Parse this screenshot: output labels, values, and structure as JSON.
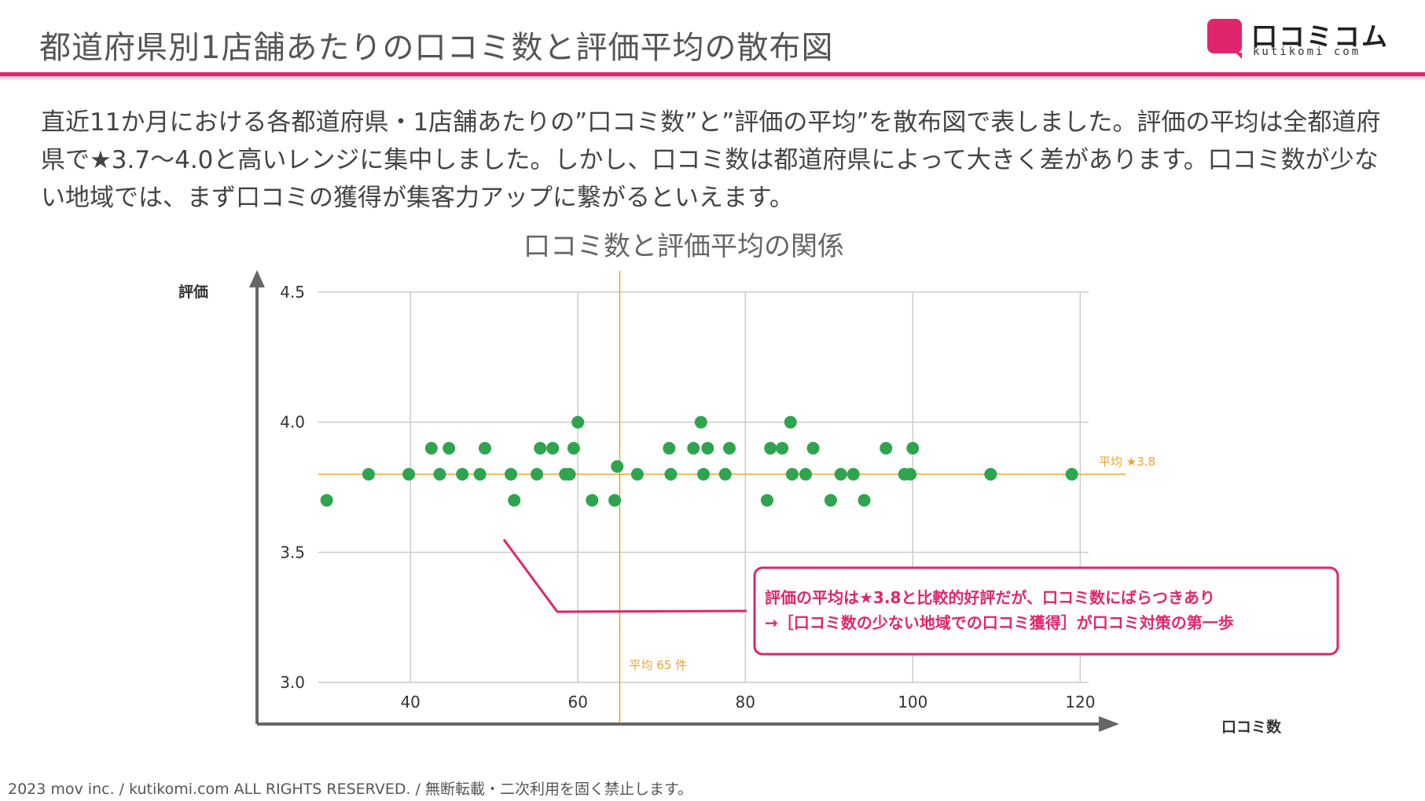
{
  "header": {
    "title": "都道府県別1店舗あたりの口コミ数と評価平均の散布図",
    "brand_colors": {
      "accent": "#e0256d",
      "dots": "#2ea44f",
      "guide": "#f0a030"
    }
  },
  "logo": {
    "name": "口コミコム",
    "sub": "kutikomi com"
  },
  "lead_text": "直近11か月における各都道府県・1店舗あたりの”口コミ数”と”評価の平均”を散布図で表しました。評価の平均は全都道府県で★3.7〜4.0と高いレンジに集中しました。しかし、口コミ数は都道府県によって大きく差があります。口コミ数が少ない地域では、まず口コミの獲得が集客力アップに繋がるといえます。",
  "chart_data": {
    "type": "scatter",
    "title": "口コミ数と評価平均の関係",
    "xlabel": "口コミ数",
    "ylabel": "評価",
    "xlim": [
      29,
      121
    ],
    "ylim": [
      3.0,
      4.5
    ],
    "x_ticks": [
      40,
      60,
      80,
      100,
      120
    ],
    "y_ticks": [
      3.0,
      3.5,
      4.0,
      4.5
    ],
    "y_tick_labels": [
      "3.0",
      "3.5",
      "4.0",
      "4.5"
    ],
    "grid": true,
    "points": [
      {
        "x": 30.0,
        "y": 3.7
      },
      {
        "x": 35.0,
        "y": 3.8
      },
      {
        "x": 39.8,
        "y": 3.8
      },
      {
        "x": 42.5,
        "y": 3.9
      },
      {
        "x": 43.5,
        "y": 3.8
      },
      {
        "x": 44.6,
        "y": 3.9
      },
      {
        "x": 46.2,
        "y": 3.8
      },
      {
        "x": 48.3,
        "y": 3.8
      },
      {
        "x": 48.9,
        "y": 3.9
      },
      {
        "x": 52.0,
        "y": 3.8
      },
      {
        "x": 52.4,
        "y": 3.7
      },
      {
        "x": 55.1,
        "y": 3.8
      },
      {
        "x": 55.5,
        "y": 3.9
      },
      {
        "x": 57.0,
        "y": 3.9
      },
      {
        "x": 58.5,
        "y": 3.8
      },
      {
        "x": 59.0,
        "y": 3.8
      },
      {
        "x": 59.5,
        "y": 3.9
      },
      {
        "x": 60.0,
        "y": 4.0
      },
      {
        "x": 61.7,
        "y": 3.7
      },
      {
        "x": 64.4,
        "y": 3.7
      },
      {
        "x": 64.7,
        "y": 3.83
      },
      {
        "x": 67.1,
        "y": 3.8
      },
      {
        "x": 70.9,
        "y": 3.9
      },
      {
        "x": 71.1,
        "y": 3.8
      },
      {
        "x": 73.8,
        "y": 3.9
      },
      {
        "x": 74.7,
        "y": 4.0
      },
      {
        "x": 75.0,
        "y": 3.8
      },
      {
        "x": 75.5,
        "y": 3.9
      },
      {
        "x": 77.6,
        "y": 3.8
      },
      {
        "x": 78.1,
        "y": 3.9
      },
      {
        "x": 82.6,
        "y": 3.7
      },
      {
        "x": 83.0,
        "y": 3.9
      },
      {
        "x": 84.4,
        "y": 3.9
      },
      {
        "x": 85.4,
        "y": 4.0
      },
      {
        "x": 85.6,
        "y": 3.8
      },
      {
        "x": 87.2,
        "y": 3.8
      },
      {
        "x": 88.1,
        "y": 3.9
      },
      {
        "x": 90.2,
        "y": 3.7
      },
      {
        "x": 91.4,
        "y": 3.8
      },
      {
        "x": 92.9,
        "y": 3.8
      },
      {
        "x": 94.2,
        "y": 3.7
      },
      {
        "x": 96.8,
        "y": 3.9
      },
      {
        "x": 99.0,
        "y": 3.8
      },
      {
        "x": 99.7,
        "y": 3.8
      },
      {
        "x": 100.0,
        "y": 3.9
      },
      {
        "x": 109.3,
        "y": 3.8
      },
      {
        "x": 119.0,
        "y": 3.8
      }
    ],
    "reference_lines": {
      "y_mean": {
        "value": 3.8,
        "label": "平均 ★3.8"
      },
      "x_mean": {
        "value": 65,
        "label": "平均 65 件"
      }
    },
    "annotation": {
      "line1": "評価の平均は★3.8と比較的好評だが、口コミ数にばらつきあり",
      "line2": "→［口コミ数の少ない地域での口コミ獲得］が口コミ対策の第一歩"
    }
  },
  "footer": "2023 mov inc. / kutikomi.com ALL RIGHTS RESERVED. / 無断転載・二次利用を固く禁止します。"
}
